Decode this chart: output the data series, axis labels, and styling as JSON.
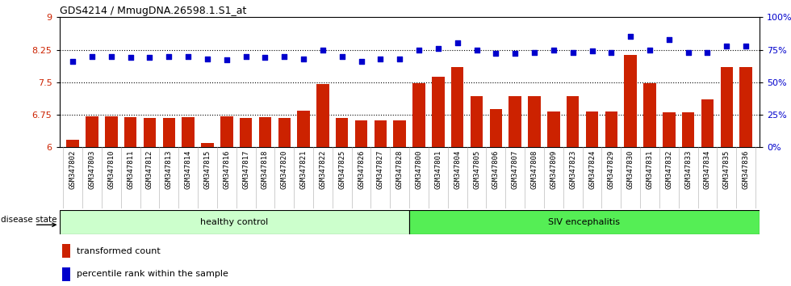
{
  "title": "GDS4214 / MmugDNA.26598.1.S1_at",
  "categories": [
    "GSM347802",
    "GSM347803",
    "GSM347810",
    "GSM347811",
    "GSM347812",
    "GSM347813",
    "GSM347814",
    "GSM347815",
    "GSM347816",
    "GSM347817",
    "GSM347818",
    "GSM347820",
    "GSM347821",
    "GSM347822",
    "GSM347825",
    "GSM347826",
    "GSM347827",
    "GSM347828",
    "GSM347800",
    "GSM347801",
    "GSM347804",
    "GSM347805",
    "GSM347806",
    "GSM347807",
    "GSM347808",
    "GSM347809",
    "GSM347823",
    "GSM347824",
    "GSM347829",
    "GSM347830",
    "GSM347831",
    "GSM347832",
    "GSM347833",
    "GSM347834",
    "GSM347835",
    "GSM347836"
  ],
  "bar_values": [
    6.18,
    6.72,
    6.72,
    6.7,
    6.68,
    6.68,
    6.7,
    6.1,
    6.72,
    6.68,
    6.7,
    6.68,
    6.85,
    7.45,
    6.68,
    6.62,
    6.62,
    6.62,
    7.48,
    7.62,
    7.85,
    7.18,
    6.88,
    7.18,
    7.18,
    6.82,
    7.18,
    6.82,
    6.82,
    8.12,
    7.48,
    6.8,
    6.8,
    7.1,
    7.85,
    7.85
  ],
  "dot_values": [
    66,
    70,
    70,
    69,
    69,
    70,
    70,
    68,
    67,
    70,
    69,
    70,
    68,
    75,
    70,
    66,
    68,
    68,
    75,
    76,
    80,
    75,
    72,
    72,
    73,
    75,
    73,
    74,
    73,
    85,
    75,
    83,
    73,
    73,
    78,
    78
  ],
  "healthy_count": 18,
  "ylim_left": [
    6.0,
    9.0
  ],
  "ylim_right": [
    0,
    100
  ],
  "yticks_left": [
    6.0,
    6.75,
    7.5,
    8.25,
    9.0
  ],
  "ytick_labels_left": [
    "6",
    "6.75",
    "7.5",
    "8.25",
    "9"
  ],
  "yticks_right": [
    0,
    25,
    50,
    75,
    100
  ],
  "ytick_labels_right": [
    "0%",
    "25%",
    "50%",
    "75%",
    "100%"
  ],
  "hlines": [
    6.75,
    7.5,
    8.25
  ],
  "bar_color": "#cc2200",
  "dot_color": "#0000cc",
  "healthy_fill": "#ccffcc",
  "siv_fill": "#55ee55",
  "label_healthy": "healthy control",
  "label_siv": "SIV encephalitis",
  "legend_bar_label": "transformed count",
  "legend_dot_label": "percentile rank within the sample",
  "disease_state_label": "disease state",
  "bar_width": 0.65,
  "xtick_bg": "#dddddd",
  "fig_bg": "#ffffff"
}
